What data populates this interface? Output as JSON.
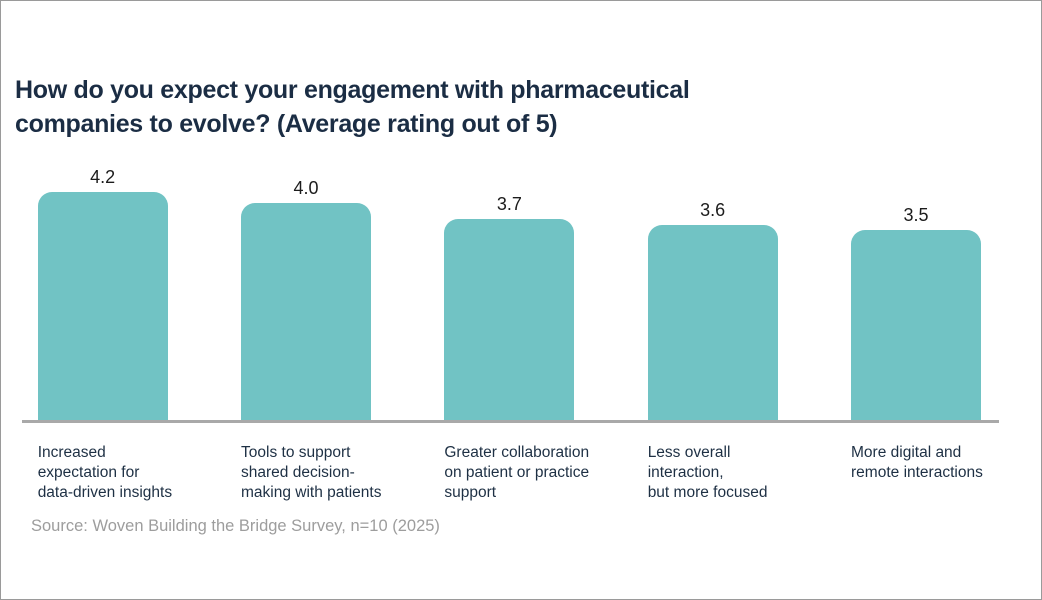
{
  "page": {
    "background_color": "#ffffff",
    "border_color": "#9a9a9a"
  },
  "title": "How do you expect your engagement with pharmaceutical\ncompanies to evolve? (Average rating out of 5)",
  "source": "Source: Woven Building the Bridge Survey, n=10 (2025)",
  "chart_data": {
    "type": "bar",
    "title": "How do you expect your engagement with pharmaceutical companies to evolve? (Average rating out of 5)",
    "categories": [
      "Increased expectation for data-driven insights",
      "Tools to support shared decision-making with patients",
      "Greater collaboration on patient or practice support",
      "Less overall interaction, but more focused",
      "More digital and remote interactions"
    ],
    "category_label_lines": [
      "Increased\nexpectation for\ndata-driven insights",
      "Tools to support\nshared decision-\nmaking with patients",
      "Greater collaboration\non patient or practice\nsupport",
      "Less overall\ninteraction,\nbut more focused",
      "More digital and\nremote interactions"
    ],
    "values": [
      4.2,
      4.0,
      3.7,
      3.6,
      3.5
    ],
    "value_labels": [
      "4.2",
      "4.0",
      "3.7",
      "3.6",
      "3.5"
    ],
    "ylim": [
      0,
      5
    ],
    "xlabel": "",
    "ylabel": "",
    "grid": false,
    "legend_position": "none",
    "data_labels_shown": true,
    "bar_color": "#71c3c4",
    "axis_line_color": "#a9a9a9",
    "title_color": "#1b2d44",
    "value_label_color": "#1c1c1c",
    "category_label_color": "#1e3044",
    "source_color": "#9d9d9d",
    "source": "Source: Woven Building the Bridge Survey, n=10 (2025)"
  }
}
